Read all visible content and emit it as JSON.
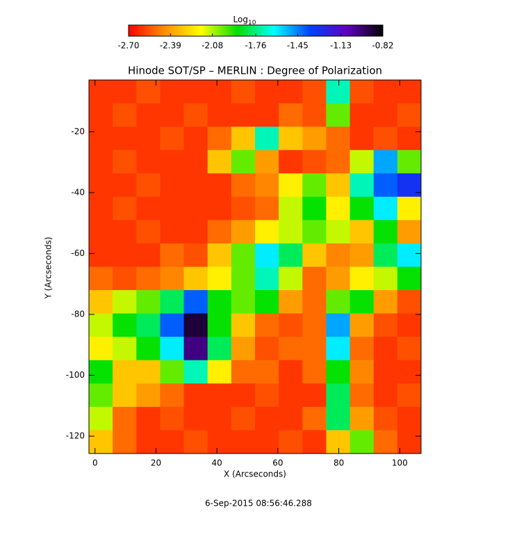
{
  "chart_data": {
    "type": "heatmap",
    "title": "Hinode SOT/SP – MERLIN : Degree of Polarization",
    "x_label": "X (Arcseconds)",
    "y_label": "Y (Arcseconds)",
    "footer": "6-Sep-2015 08:56:46.288",
    "colorbar_title": "Log",
    "colorbar_title_sub": "10",
    "xlim": [
      -2,
      107
    ],
    "ylim": [
      -125.7,
      -3
    ],
    "xticks": [
      0,
      20,
      40,
      60,
      80,
      100
    ],
    "yticks": [
      -20,
      -40,
      -60,
      -80,
      -100,
      -120
    ],
    "clim": [
      -2.7,
      -0.82
    ],
    "cticks": [
      {
        "value": -2.7,
        "label": "-2.70"
      },
      -2.39,
      -2.08,
      -1.76,
      -1.45,
      -1.13,
      -0.82
    ],
    "colormap": [
      "#ff0000",
      "#ff9000",
      "#ffff00",
      "#00e000",
      "#00ffff",
      "#0040ff",
      "#6000c0",
      "#000000"
    ],
    "z": [
      [
        -2.6,
        -2.6,
        -2.55,
        -2.6,
        -2.6,
        -2.6,
        -2.55,
        -2.6,
        -2.6,
        -2.55,
        -1.7,
        -2.55,
        -2.6,
        -2.6
      ],
      [
        -2.6,
        -2.55,
        -2.6,
        -2.6,
        -2.55,
        -2.6,
        -2.6,
        -2.6,
        -2.5,
        -2.55,
        -2.0,
        -2.6,
        -2.6,
        -2.55
      ],
      [
        -2.6,
        -2.6,
        -2.6,
        -2.55,
        -2.6,
        -2.5,
        -2.3,
        -1.7,
        -2.3,
        -2.4,
        -2.5,
        -2.6,
        -2.55,
        -2.6
      ],
      [
        -2.6,
        -2.55,
        -2.6,
        -2.6,
        -2.6,
        -2.3,
        -2.0,
        -2.4,
        -2.6,
        -2.55,
        -2.5,
        -2.1,
        -1.5,
        -2.0
      ],
      [
        -2.6,
        -2.6,
        -2.55,
        -2.6,
        -2.6,
        -2.6,
        -2.5,
        -2.45,
        -2.2,
        -2.0,
        -2.3,
        -1.7,
        -1.4,
        -1.3
      ],
      [
        -2.6,
        -2.55,
        -2.6,
        -2.6,
        -2.6,
        -2.6,
        -2.55,
        -2.5,
        -2.1,
        -1.9,
        -2.2,
        -1.9,
        -1.6,
        -2.2
      ],
      [
        -2.6,
        -2.6,
        -2.55,
        -2.6,
        -2.6,
        -2.5,
        -2.4,
        -2.2,
        -2.1,
        -2.0,
        -2.1,
        -2.3,
        -1.9,
        -2.4
      ],
      [
        -2.6,
        -2.6,
        -2.6,
        -2.5,
        -2.55,
        -2.3,
        -2.0,
        -1.6,
        -1.8,
        -2.3,
        -2.45,
        -2.4,
        -1.8,
        -1.6
      ],
      [
        -2.5,
        -2.55,
        -2.5,
        -2.45,
        -2.3,
        -2.2,
        -2.0,
        -1.7,
        -2.1,
        -2.5,
        -2.4,
        -2.2,
        -2.1,
        -1.9
      ],
      [
        -2.3,
        -2.1,
        -2.0,
        -1.8,
        -1.4,
        -1.9,
        -2.0,
        -1.9,
        -2.4,
        -2.5,
        -2.0,
        -1.9,
        -2.4,
        -2.55
      ],
      [
        -2.1,
        -1.9,
        -1.8,
        -1.4,
        -0.9,
        -1.9,
        -2.3,
        -2.5,
        -2.55,
        -2.5,
        -1.5,
        -2.4,
        -2.55,
        -2.6
      ],
      [
        -2.2,
        -2.1,
        -1.9,
        -1.6,
        -1.0,
        -1.8,
        -2.4,
        -2.55,
        -2.5,
        -2.5,
        -1.6,
        -2.5,
        -2.6,
        -2.55
      ],
      [
        -1.9,
        -2.3,
        -2.3,
        -2.0,
        -1.7,
        -2.2,
        -2.5,
        -2.5,
        -2.6,
        -2.5,
        -1.9,
        -2.45,
        -2.6,
        -2.6
      ],
      [
        -2.0,
        -2.3,
        -2.4,
        -2.5,
        -2.6,
        -2.6,
        -2.6,
        -2.55,
        -2.6,
        -2.6,
        -1.8,
        -2.5,
        -2.6,
        -2.55
      ],
      [
        -2.1,
        -2.5,
        -2.6,
        -2.55,
        -2.6,
        -2.6,
        -2.55,
        -2.6,
        -2.6,
        -2.5,
        -1.8,
        -2.4,
        -2.55,
        -2.6
      ],
      [
        -2.3,
        -2.5,
        -2.6,
        -2.6,
        -2.55,
        -2.6,
        -2.6,
        -2.6,
        -2.55,
        -2.6,
        -2.3,
        -2.0,
        -2.5,
        -2.6
      ]
    ]
  }
}
